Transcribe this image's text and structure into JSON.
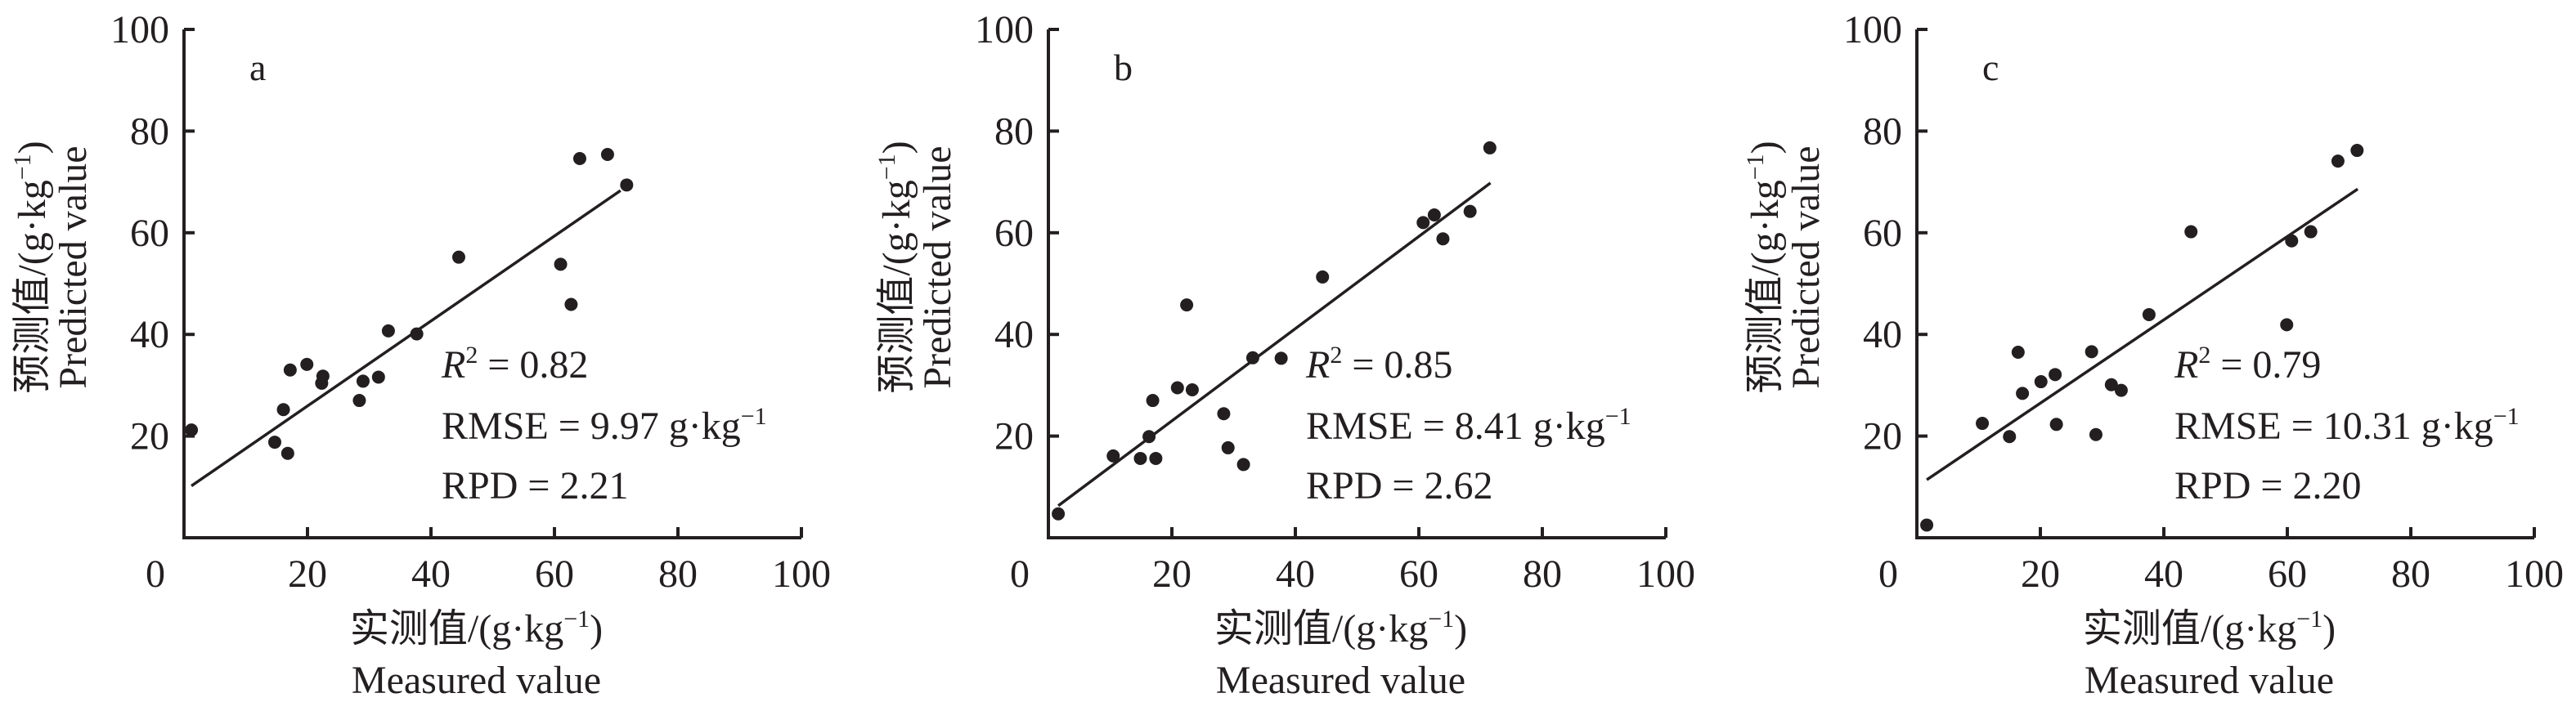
{
  "chart_data": [
    {
      "type": "scatter",
      "panel_label": "a",
      "xlabel_cn": "实测值/(g·kg",
      "xlabel_unit_sup": "−1",
      "xlabel_close": ")",
      "xlabel_en": "Measured value",
      "ylabel_cn": "预测值/(g·kg",
      "ylabel_unit_sup": "−1",
      "ylabel_close": ")",
      "ylabel_en": "Predicted value",
      "xlim": [
        0,
        100
      ],
      "ylim": [
        0,
        100
      ],
      "xticks": [
        "0",
        "20",
        "40",
        "60",
        "80",
        "100"
      ],
      "yticks": [
        "20",
        "40",
        "60",
        "80",
        "100"
      ],
      "grid": false,
      "stats": {
        "r2_label": "R",
        "r2_sup": "2",
        "r2_value": " = 0.82",
        "rmse": "RMSE = 9.97 g·kg",
        "rmse_sup": "−1",
        "rpd": "RPD = 2.21"
      },
      "fit_line": {
        "x": [
          1.2,
          70.7
        ],
        "y": [
          10.2,
          68.3
        ]
      },
      "points": {
        "x": [
          1.2,
          14.7,
          16.8,
          16.1,
          17.2,
          19.9,
          22.5,
          22.3,
          28.4,
          29.0,
          31.5,
          33.1,
          37.7,
          44.5,
          61.0,
          62.7,
          64.1,
          68.6,
          71.7
        ],
        "y": [
          21.2,
          18.8,
          16.6,
          25.2,
          33.0,
          34.1,
          31.8,
          30.4,
          27.0,
          30.8,
          31.6,
          40.7,
          40.1,
          55.2,
          53.8,
          45.9,
          74.6,
          75.4,
          69.4
        ]
      }
    },
    {
      "type": "scatter",
      "panel_label": "b",
      "xlabel_cn": "实测值/(g·kg",
      "xlabel_unit_sup": "−1",
      "xlabel_close": ")",
      "xlabel_en": "Measured value",
      "ylabel_cn": "预测值/(g·kg",
      "ylabel_unit_sup": "−1",
      "ylabel_close": ")",
      "ylabel_en": "Predicted value",
      "xlim": [
        0,
        100
      ],
      "ylim": [
        0,
        100
      ],
      "xticks": [
        "0",
        "20",
        "40",
        "60",
        "80",
        "100"
      ],
      "yticks": [
        "20",
        "40",
        "60",
        "80",
        "100"
      ],
      "grid": false,
      "stats": {
        "r2_label": "R",
        "r2_sup": "2",
        "r2_value": " = 0.85",
        "rmse": "RMSE = 8.41 g·kg",
        "rmse_sup": "−1",
        "rpd": "RPD = 2.62"
      },
      "fit_line": {
        "x": [
          1.6,
          71.6
        ],
        "y": [
          6.3,
          69.8
        ]
      },
      "points": {
        "x": [
          1.6,
          10.5,
          14.9,
          17.4,
          16.3,
          16.9,
          20.9,
          23.3,
          22.4,
          28.4,
          29.1,
          31.6,
          33.1,
          37.7,
          44.4,
          60.7,
          62.5,
          63.9,
          68.3,
          71.5
        ],
        "y": [
          4.7,
          16.1,
          15.6,
          15.6,
          19.9,
          27.0,
          29.5,
          29.1,
          45.8,
          24.4,
          17.7,
          14.4,
          35.4,
          35.3,
          51.3,
          62.0,
          63.5,
          58.8,
          64.2,
          76.7
        ]
      }
    },
    {
      "type": "scatter",
      "panel_label": "c",
      "xlabel_cn": "实测值/(g·kg",
      "xlabel_unit_sup": "−1",
      "xlabel_close": ")",
      "xlabel_en": "Measured value",
      "ylabel_cn": "预测值/(g·kg",
      "ylabel_unit_sup": "−1",
      "ylabel_close": ")",
      "ylabel_en": "Predicted value",
      "xlim": [
        0,
        100
      ],
      "ylim": [
        0,
        100
      ],
      "xticks": [
        "0",
        "20",
        "40",
        "60",
        "80",
        "100"
      ],
      "yticks": [
        "20",
        "40",
        "60",
        "80",
        "100"
      ],
      "grid": false,
      "stats": {
        "r2_label": "R",
        "r2_sup": "2",
        "r2_value": " = 0.79",
        "rmse": "RMSE = 10.31 g·kg",
        "rmse_sup": "−1",
        "rpd": "RPD = 2.20"
      },
      "fit_line": {
        "x": [
          1.6,
          71.4
        ],
        "y": [
          11.4,
          68.6
        ]
      },
      "points": {
        "x": [
          1.6,
          10.6,
          15.0,
          16.4,
          17.1,
          20.1,
          22.4,
          22.6,
          28.3,
          29.0,
          31.5,
          33.1,
          37.6,
          44.4,
          59.9,
          60.7,
          63.8,
          68.2,
          71.3
        ],
        "y": [
          2.5,
          22.5,
          19.9,
          36.5,
          28.4,
          30.7,
          32.1,
          22.3,
          36.6,
          20.3,
          30.1,
          29.0,
          43.9,
          60.2,
          41.9,
          58.4,
          60.2,
          74.1,
          76.2
        ]
      }
    }
  ]
}
